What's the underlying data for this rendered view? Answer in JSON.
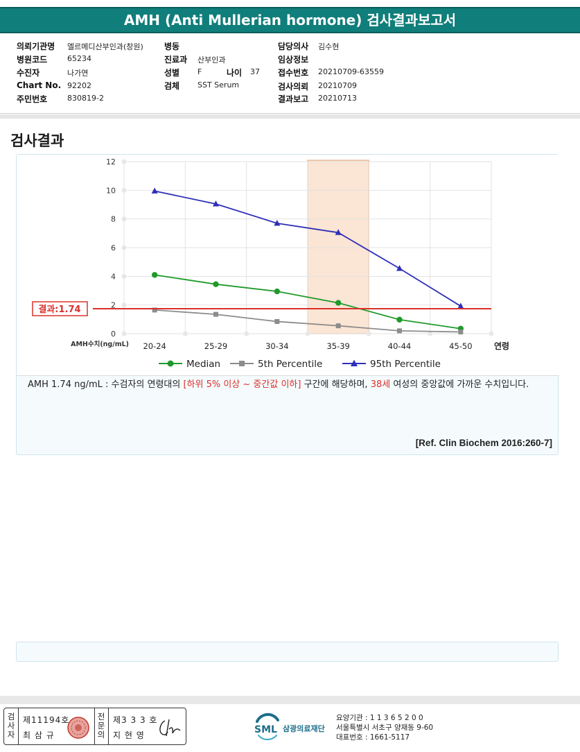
{
  "report": {
    "title": "AMH (Anti Mullerian hormone) 검사결과보고서"
  },
  "info": {
    "institution_label": "의뢰기관명",
    "institution_value": "엘르메디산부인과(창원)",
    "ward_label": "병동",
    "ward_value": "",
    "doctor_label": "담당의사",
    "doctor_value": "김수현",
    "hospital_code_label": "병원코드",
    "hospital_code_value": "65234",
    "department_label": "진료과",
    "department_value": "산부인과",
    "clinical_label": "임상정보",
    "clinical_value": "",
    "patient_label": "수진자",
    "patient_value": "나가연",
    "sex_label": "성별",
    "sex_value": "F",
    "age_label": "나이",
    "age_value": "37",
    "receipt_label": "접수번호",
    "receipt_value": "20210709-63559",
    "chart_label": "Chart No.",
    "chart_value": "92202",
    "specimen_label": "검체",
    "specimen_value": "SST Serum",
    "request_label": "검사의뢰",
    "request_value": "20210709",
    "id_label": "주민번호",
    "id_value": "830819-2",
    "report_label": "결과보고",
    "report_value": "20210713"
  },
  "section": {
    "title": "검사결과"
  },
  "chart_data": {
    "type": "line",
    "categories": [
      "20-24",
      "25-29",
      "30-34",
      "35-39",
      "40-44",
      "45-50"
    ],
    "x_axis_suffix": "연령",
    "y_unit_label": "AMH수치(ng/mL)",
    "ylim": [
      0,
      12
    ],
    "yticks": [
      "0",
      "2",
      "4",
      "6",
      "8",
      "10",
      "12"
    ],
    "grid": true,
    "highlight_category": "35-39",
    "result_line": {
      "value": 1.74,
      "label": "결과:1.74",
      "color": "#d9302a"
    },
    "series": [
      {
        "name": "Median",
        "color": "#1f9a2a",
        "marker": "circle",
        "values": [
          4.1,
          3.45,
          2.95,
          2.15,
          0.98,
          0.35
        ]
      },
      {
        "name": "5th Percentile",
        "color": "#8c8c8c",
        "marker": "square",
        "values": [
          1.65,
          1.35,
          0.85,
          0.55,
          0.2,
          0.12
        ]
      },
      {
        "name": "95th Percentile",
        "color": "#2e2fb8",
        "marker": "triangle",
        "values": [
          9.95,
          9.05,
          7.7,
          7.05,
          4.55,
          1.92
        ]
      }
    ],
    "legend_position": "bottom"
  },
  "interpretation": {
    "part1": "AMH  1.74 ng/mL : 수검자의 연령대의 ",
    "range": "[하위 5% 이상 ~ 중간값 이하]",
    "part2": " 구간에 해당하며, ",
    "age": "38세",
    "part3": " 여성의 중앙값에 가까운 수치입니다."
  },
  "reference": "[Ref. Clin Biochem 2016:260-7]",
  "signatures": {
    "examiner_label": "검사자",
    "examiner_no": "제11194호",
    "examiner_name": "최 삼 규",
    "specialist_label": "전문의",
    "specialist_no": "제3 3 3 호",
    "specialist_name": "지 현 영"
  },
  "footer": {
    "org_logo": "SML",
    "org_name": "삼광의료재단",
    "care_no": "요양기관 : 1 1 3 6 5 2 0 0",
    "address": "서울특별시 서초구 양재동 9-60",
    "phone": "대표번호 : 1661-5117"
  },
  "colors": {
    "title_bg": "#107e7a",
    "highlight_fill": "#fbe3d0",
    "highlight_stroke": "#e7a470"
  }
}
